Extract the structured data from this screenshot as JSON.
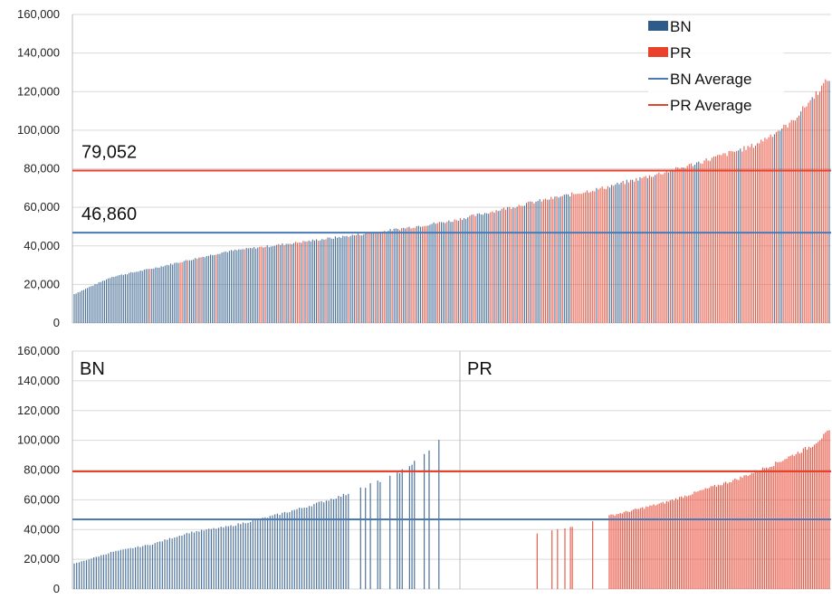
{
  "chart_data": [
    {
      "type": "bar",
      "ylim": [
        0,
        160000
      ],
      "yticks": [
        "0",
        "20,000",
        "40,000",
        "60,000",
        "80,000",
        "100,000",
        "120,000",
        "140,000",
        "160,000"
      ],
      "grid": true,
      "legend_position": "top-right",
      "legend": [
        {
          "label": "BN",
          "kind": "swatch",
          "color": "#2f5b8a"
        },
        {
          "label": "PR",
          "kind": "swatch",
          "color": "#e8412c"
        },
        {
          "label": "BN Average",
          "kind": "line",
          "color": "#4a7ab5"
        },
        {
          "label": "PR Average",
          "kind": "line",
          "color": "#e8412c"
        }
      ],
      "averages": [
        {
          "name": "BN Average",
          "value": 46860,
          "label": "46,860",
          "color": "#4a7ab5"
        },
        {
          "name": "PR Average",
          "value": 79052,
          "label": "79,052",
          "color": "#e8412c"
        }
      ],
      "sorted_combined_profile": {
        "x_fraction": [
          0.0,
          0.05,
          0.1,
          0.2,
          0.3,
          0.4,
          0.5,
          0.6,
          0.7,
          0.8,
          0.9,
          0.95,
          1.0
        ],
        "y": [
          15000,
          24000,
          28000,
          37000,
          42000,
          47000,
          53000,
          62000,
          70000,
          80000,
          92000,
          104000,
          127000
        ],
        "pr_share_by_segment": [
          0.05,
          0.08,
          0.2,
          0.25,
          0.3,
          0.35,
          0.4,
          0.55,
          0.7,
          0.8,
          0.85,
          0.9
        ]
      }
    },
    {
      "type": "bar",
      "ylim": [
        0,
        160000
      ],
      "yticks": [
        "0",
        "20,000",
        "40,000",
        "60,000",
        "80,000",
        "100,000",
        "120,000",
        "140,000",
        "160,000"
      ],
      "grid": true,
      "panels": [
        {
          "label": "BN",
          "color": "#2f5b8a",
          "sorted_profile": {
            "x_fraction": [
              0.0,
              0.1,
              0.2,
              0.3,
              0.4,
              0.5,
              0.6,
              0.7,
              0.75,
              0.8,
              0.85,
              0.9,
              0.95
            ],
            "y": [
              17000,
              25000,
              30000,
              38000,
              42000,
              48000,
              55000,
              63000,
              68000,
              73000,
              79000,
              88000,
              100000
            ]
          }
        },
        {
          "label": "PR",
          "color": "#e8412c",
          "sorted_profile": {
            "x_fraction": [
              0.15,
              0.3,
              0.38,
              0.45,
              0.55,
              0.65,
              0.75,
              0.85,
              0.95,
              1.0
            ],
            "y": [
              35000,
              42000,
              48000,
              52000,
              58000,
              66000,
              74000,
              84000,
              96000,
              106000
            ]
          }
        }
      ],
      "averages": [
        {
          "name": "BN Average",
          "value": 46860,
          "color": "#4a7ab5"
        },
        {
          "name": "PR Average",
          "value": 79052,
          "color": "#e8412c"
        }
      ]
    }
  ]
}
